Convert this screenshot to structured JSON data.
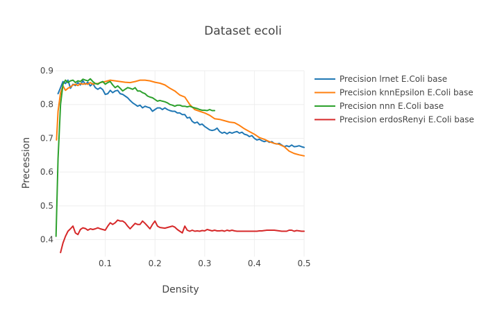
{
  "chart_data": {
    "type": "line",
    "title": "Dataset ecoli",
    "xlabel": "Density",
    "ylabel": "Precession",
    "xlim": [
      0,
      0.5
    ],
    "ylim": [
      0.35,
      0.9
    ],
    "xticks": [
      0.1,
      0.2,
      0.3,
      0.4,
      0.5
    ],
    "xtick_labels": [
      "0.1",
      "0.2",
      "0.3",
      "0.4",
      "0.5"
    ],
    "yticks": [
      0.4,
      0.5,
      0.6,
      0.7,
      0.8,
      0.9
    ],
    "ytick_labels": [
      "0.4",
      "0.5",
      "0.6",
      "0.7",
      "0.8",
      "0.9"
    ],
    "grid": true,
    "legend_position": "top-right outside plot",
    "series": [
      {
        "name": "Precision lrnet E.Coli base",
        "color": "#1f77b4",
        "x": [
          0.005,
          0.01,
          0.015,
          0.02,
          0.025,
          0.03,
          0.035,
          0.04,
          0.045,
          0.05,
          0.055,
          0.06,
          0.065,
          0.07,
          0.075,
          0.08,
          0.085,
          0.09,
          0.095,
          0.1,
          0.105,
          0.11,
          0.115,
          0.12,
          0.125,
          0.13,
          0.135,
          0.14,
          0.145,
          0.15,
          0.155,
          0.16,
          0.165,
          0.17,
          0.175,
          0.18,
          0.185,
          0.19,
          0.195,
          0.2,
          0.205,
          0.21,
          0.215,
          0.22,
          0.225,
          0.23,
          0.235,
          0.24,
          0.245,
          0.25,
          0.255,
          0.26,
          0.265,
          0.27,
          0.275,
          0.28,
          0.285,
          0.29,
          0.295,
          0.3,
          0.305,
          0.31,
          0.315,
          0.32,
          0.325,
          0.33,
          0.335,
          0.34,
          0.345,
          0.35,
          0.355,
          0.36,
          0.365,
          0.37,
          0.375,
          0.38,
          0.385,
          0.39,
          0.395,
          0.4,
          0.405,
          0.41,
          0.415,
          0.42,
          0.425,
          0.43,
          0.435,
          0.44,
          0.445,
          0.45,
          0.455,
          0.46,
          0.465,
          0.47,
          0.475,
          0.48,
          0.485,
          0.49,
          0.495,
          0.5
        ],
        "y": [
          0.832,
          0.85,
          0.868,
          0.862,
          0.872,
          0.848,
          0.86,
          0.856,
          0.865,
          0.858,
          0.87,
          0.86,
          0.866,
          0.855,
          0.862,
          0.85,
          0.845,
          0.85,
          0.844,
          0.83,
          0.832,
          0.842,
          0.835,
          0.84,
          0.842,
          0.832,
          0.83,
          0.825,
          0.82,
          0.812,
          0.805,
          0.8,
          0.795,
          0.798,
          0.79,
          0.795,
          0.792,
          0.79,
          0.78,
          0.785,
          0.79,
          0.79,
          0.785,
          0.79,
          0.785,
          0.782,
          0.78,
          0.78,
          0.775,
          0.775,
          0.77,
          0.77,
          0.76,
          0.762,
          0.75,
          0.745,
          0.748,
          0.74,
          0.742,
          0.735,
          0.73,
          0.725,
          0.723,
          0.725,
          0.73,
          0.72,
          0.715,
          0.718,
          0.713,
          0.718,
          0.715,
          0.718,
          0.72,
          0.715,
          0.718,
          0.712,
          0.71,
          0.705,
          0.708,
          0.7,
          0.695,
          0.697,
          0.693,
          0.69,
          0.693,
          0.688,
          0.69,
          0.685,
          0.683,
          0.685,
          0.68,
          0.675,
          0.678,
          0.675,
          0.68,
          0.675,
          0.676,
          0.678,
          0.675,
          0.673
        ]
      },
      {
        "name": "Precision knnEpsilon E.Coli base",
        "color": "#ff7f0e",
        "x": [
          0.002,
          0.005,
          0.01,
          0.015,
          0.02,
          0.025,
          0.03,
          0.035,
          0.04,
          0.045,
          0.05,
          0.055,
          0.06,
          0.065,
          0.07,
          0.075,
          0.08,
          0.085,
          0.09,
          0.1,
          0.11,
          0.12,
          0.13,
          0.14,
          0.15,
          0.16,
          0.17,
          0.18,
          0.19,
          0.2,
          0.21,
          0.22,
          0.23,
          0.24,
          0.25,
          0.26,
          0.27,
          0.28,
          0.29,
          0.3,
          0.31,
          0.32,
          0.33,
          0.34,
          0.35,
          0.36,
          0.37,
          0.38,
          0.39,
          0.4,
          0.41,
          0.42,
          0.43,
          0.44,
          0.45,
          0.46,
          0.47,
          0.48,
          0.49,
          0.5
        ],
        "y": [
          0.695,
          0.78,
          0.835,
          0.855,
          0.842,
          0.848,
          0.852,
          0.858,
          0.86,
          0.856,
          0.862,
          0.86,
          0.862,
          0.86,
          0.865,
          0.86,
          0.862,
          0.862,
          0.865,
          0.868,
          0.872,
          0.87,
          0.868,
          0.866,
          0.865,
          0.868,
          0.872,
          0.872,
          0.87,
          0.866,
          0.863,
          0.858,
          0.848,
          0.84,
          0.828,
          0.822,
          0.8,
          0.785,
          0.78,
          0.775,
          0.768,
          0.758,
          0.756,
          0.752,
          0.748,
          0.746,
          0.738,
          0.728,
          0.72,
          0.712,
          0.702,
          0.697,
          0.69,
          0.685,
          0.682,
          0.675,
          0.662,
          0.655,
          0.651,
          0.648
        ]
      },
      {
        "name": "Precision nnn E.Coli base",
        "color": "#2ca02c",
        "x": [
          0.001,
          0.005,
          0.01,
          0.015,
          0.02,
          0.025,
          0.03,
          0.035,
          0.04,
          0.045,
          0.05,
          0.055,
          0.06,
          0.065,
          0.07,
          0.075,
          0.08,
          0.085,
          0.09,
          0.095,
          0.1,
          0.105,
          0.11,
          0.115,
          0.12,
          0.125,
          0.13,
          0.135,
          0.14,
          0.145,
          0.15,
          0.155,
          0.16,
          0.165,
          0.17,
          0.175,
          0.18,
          0.185,
          0.19,
          0.195,
          0.2,
          0.205,
          0.21,
          0.215,
          0.22,
          0.225,
          0.23,
          0.235,
          0.24,
          0.245,
          0.25,
          0.255,
          0.26,
          0.265,
          0.27,
          0.275,
          0.28,
          0.285,
          0.29,
          0.295,
          0.3,
          0.305,
          0.31,
          0.315,
          0.32
        ],
        "y": [
          0.41,
          0.64,
          0.8,
          0.86,
          0.872,
          0.865,
          0.87,
          0.872,
          0.865,
          0.87,
          0.868,
          0.875,
          0.872,
          0.87,
          0.876,
          0.868,
          0.862,
          0.86,
          0.865,
          0.868,
          0.86,
          0.865,
          0.868,
          0.858,
          0.85,
          0.855,
          0.848,
          0.84,
          0.845,
          0.85,
          0.848,
          0.845,
          0.85,
          0.84,
          0.84,
          0.835,
          0.832,
          0.825,
          0.822,
          0.82,
          0.815,
          0.81,
          0.812,
          0.81,
          0.808,
          0.805,
          0.8,
          0.798,
          0.795,
          0.798,
          0.798,
          0.795,
          0.795,
          0.793,
          0.795,
          0.792,
          0.79,
          0.788,
          0.785,
          0.783,
          0.783,
          0.782,
          0.785,
          0.782,
          0.782
        ]
      },
      {
        "name": "Precision erdosRenyi E.Coli base",
        "color": "#d62728",
        "x": [
          0.01,
          0.015,
          0.02,
          0.025,
          0.03,
          0.035,
          0.04,
          0.045,
          0.05,
          0.055,
          0.06,
          0.065,
          0.07,
          0.075,
          0.08,
          0.085,
          0.09,
          0.095,
          0.1,
          0.105,
          0.11,
          0.115,
          0.12,
          0.125,
          0.13,
          0.135,
          0.14,
          0.145,
          0.15,
          0.155,
          0.16,
          0.165,
          0.17,
          0.175,
          0.18,
          0.185,
          0.19,
          0.195,
          0.2,
          0.205,
          0.21,
          0.215,
          0.22,
          0.225,
          0.23,
          0.235,
          0.24,
          0.245,
          0.25,
          0.255,
          0.26,
          0.265,
          0.27,
          0.275,
          0.28,
          0.285,
          0.29,
          0.295,
          0.3,
          0.305,
          0.31,
          0.315,
          0.32,
          0.325,
          0.33,
          0.335,
          0.34,
          0.345,
          0.35,
          0.355,
          0.36,
          0.365,
          0.37,
          0.375,
          0.38,
          0.385,
          0.39,
          0.395,
          0.4,
          0.405,
          0.41,
          0.415,
          0.42,
          0.425,
          0.43,
          0.435,
          0.44,
          0.445,
          0.45,
          0.455,
          0.46,
          0.465,
          0.47,
          0.475,
          0.48,
          0.485,
          0.49,
          0.495,
          0.5
        ],
        "y": [
          0.362,
          0.39,
          0.41,
          0.425,
          0.432,
          0.44,
          0.42,
          0.415,
          0.43,
          0.435,
          0.433,
          0.428,
          0.432,
          0.43,
          0.432,
          0.435,
          0.432,
          0.43,
          0.428,
          0.44,
          0.45,
          0.445,
          0.45,
          0.458,
          0.455,
          0.455,
          0.45,
          0.44,
          0.432,
          0.44,
          0.448,
          0.445,
          0.445,
          0.455,
          0.448,
          0.44,
          0.432,
          0.445,
          0.455,
          0.44,
          0.436,
          0.435,
          0.434,
          0.436,
          0.438,
          0.44,
          0.437,
          0.43,
          0.425,
          0.42,
          0.44,
          0.428,
          0.425,
          0.428,
          0.425,
          0.426,
          0.425,
          0.427,
          0.426,
          0.43,
          0.428,
          0.426,
          0.428,
          0.426,
          0.426,
          0.427,
          0.425,
          0.428,
          0.426,
          0.428,
          0.426,
          0.425,
          0.425,
          0.425,
          0.425,
          0.425,
          0.425,
          0.425,
          0.425,
          0.425,
          0.426,
          0.426,
          0.427,
          0.428,
          0.428,
          0.428,
          0.428,
          0.427,
          0.426,
          0.425,
          0.425,
          0.425,
          0.428,
          0.428,
          0.425,
          0.427,
          0.426,
          0.425,
          0.425
        ]
      }
    ]
  }
}
